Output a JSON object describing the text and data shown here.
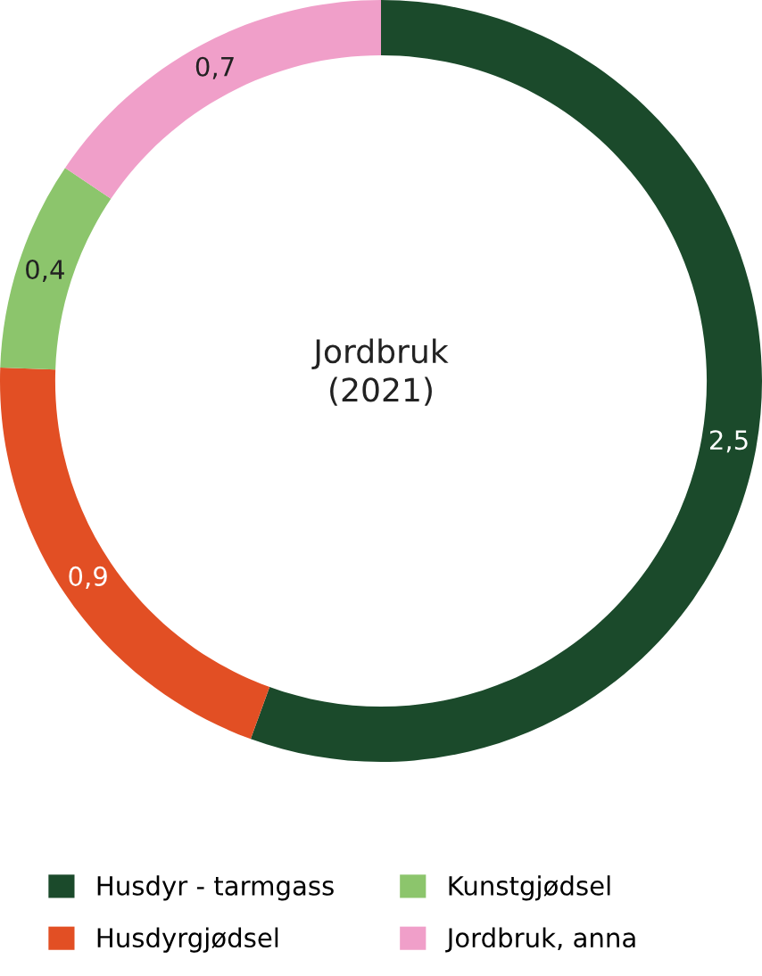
{
  "chart_data": {
    "type": "donut",
    "title": "Jordbruk\n(2021)",
    "categories": [
      "Husdyr - tarmgass",
      "Husdyrgjødsel",
      "Kunstgjødsel",
      "Jordbruk, anna"
    ],
    "values": [
      2.5,
      0.9,
      0.4,
      0.7
    ],
    "value_labels": [
      "2,5",
      "0,9",
      "0,4",
      "0,7"
    ],
    "colors": [
      "#1b4a2b",
      "#e24f24",
      "#8cc56c",
      "#f09fc9"
    ],
    "legend": "bottom"
  }
}
